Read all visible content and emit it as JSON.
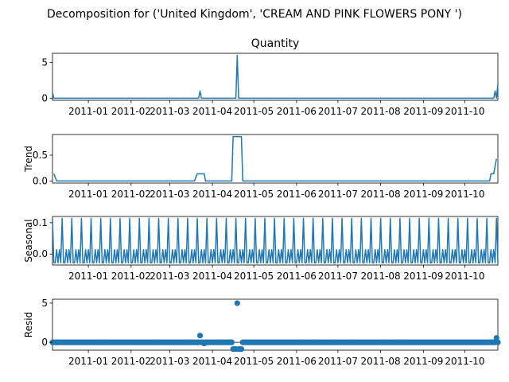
{
  "chart_data": {
    "type": "line",
    "title": "Decomposition for ('United Kingdom', 'CREAM AND PINK FLOWERS PONY ')",
    "line_color": "#1f77b4",
    "x_ticks": [
      "2011-01",
      "2011-02",
      "2011-03",
      "2011-04",
      "2011-05",
      "2011-06",
      "2011-07",
      "2011-08",
      "2011-09",
      "2011-10"
    ],
    "x_start": "2010-12-06",
    "x_end": "2011-10-25",
    "panels": [
      {
        "title": "Quantity",
        "ylabel": "",
        "kind": "line",
        "ylim": [
          -0.3,
          6.3
        ],
        "yticks": [
          0,
          5
        ],
        "points": [
          [
            "2010-12-06",
            0.8
          ],
          [
            "2010-12-07",
            0
          ],
          [
            "2011-03-22",
            0
          ],
          [
            "2011-03-23",
            1
          ],
          [
            "2011-03-24",
            0
          ],
          [
            "2011-04-18",
            0
          ],
          [
            "2011-04-19",
            6
          ],
          [
            "2011-04-20",
            0
          ],
          [
            "2011-10-22",
            0
          ],
          [
            "2011-10-23",
            1
          ],
          [
            "2011-10-24",
            0
          ],
          [
            "2011-10-25",
            2
          ]
        ]
      },
      {
        "title": "",
        "ylabel": "Trend",
        "kind": "line",
        "ylim": [
          -0.04,
          0.9
        ],
        "yticks": [
          0.0,
          0.5
        ],
        "points": [
          [
            "2010-12-07",
            0.14
          ],
          [
            "2010-12-09",
            0
          ],
          [
            "2011-03-19",
            0
          ],
          [
            "2011-03-21",
            0.14
          ],
          [
            "2011-03-26",
            0.14
          ],
          [
            "2011-03-27",
            0
          ],
          [
            "2011-04-15",
            0
          ],
          [
            "2011-04-16",
            0.86
          ],
          [
            "2011-04-22",
            0.86
          ],
          [
            "2011-04-23",
            0
          ],
          [
            "2011-10-19",
            0
          ],
          [
            "2011-10-20",
            0.14
          ],
          [
            "2011-10-22",
            0.14
          ],
          [
            "2011-10-24",
            0.43
          ]
        ]
      },
      {
        "title": "",
        "ylabel": "Seasonal",
        "kind": "seasonal",
        "ylim": [
          -0.035,
          0.12
        ],
        "yticks": [
          0.0,
          0.1
        ],
        "pattern": [
          0.114,
          -0.028,
          -0.028,
          0.014,
          -0.028,
          0.014,
          -0.028
        ]
      },
      {
        "title": "",
        "ylabel": "Resid",
        "kind": "scatter",
        "ylim": [
          -1.0,
          5.5
        ],
        "yticks": [
          0,
          5
        ],
        "default": 0,
        "outliers": [
          [
            "2011-03-23",
            0.86
          ],
          [
            "2011-03-26",
            -0.14
          ],
          [
            "2011-04-16",
            -0.86
          ],
          [
            "2011-04-17",
            -0.86
          ],
          [
            "2011-04-18",
            -0.86
          ],
          [
            "2011-04-19",
            5.0
          ],
          [
            "2011-04-20",
            -0.86
          ],
          [
            "2011-04-21",
            -0.86
          ],
          [
            "2011-04-22",
            -0.86
          ],
          [
            "2011-10-24",
            0.57
          ]
        ]
      }
    ]
  }
}
